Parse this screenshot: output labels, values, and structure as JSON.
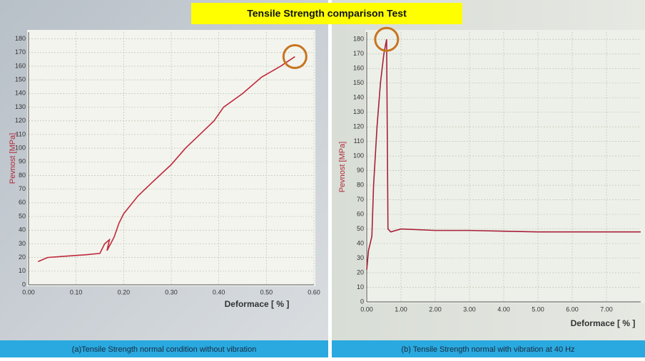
{
  "header": {
    "title": "Tensile Strength comparison Test"
  },
  "chart_data": [
    {
      "type": "line",
      "caption": "(a)Tensile Strength normal condition without vibration",
      "x_label": "Deformace [ % ]",
      "y_label": "Pevnost [MPa]",
      "color": "#c0283c",
      "grid": true,
      "x": [
        0.02,
        0.04,
        0.08,
        0.12,
        0.15,
        0.16,
        0.17,
        0.165,
        0.18,
        0.19,
        0.2,
        0.23,
        0.26,
        0.3,
        0.33,
        0.36,
        0.39,
        0.41,
        0.45,
        0.49,
        0.53,
        0.56
      ],
      "values": [
        17,
        20,
        21,
        22,
        23,
        30,
        33,
        25,
        35,
        45,
        52,
        65,
        75,
        88,
        100,
        110,
        120,
        130,
        140,
        152,
        160,
        167
      ],
      "xlim": [
        0,
        0.6
      ],
      "ylim": [
        0,
        185
      ],
      "xticks": [
        {
          "value": 0,
          "label": "0.00"
        },
        {
          "value": 0.1,
          "label": "0.10"
        },
        {
          "value": 0.2,
          "label": "0.20"
        },
        {
          "value": 0.3,
          "label": "0.30"
        },
        {
          "value": 0.4,
          "label": "0.40"
        },
        {
          "value": 0.5,
          "label": "0.50"
        },
        {
          "value": 0.6,
          "label": "0.60"
        }
      ],
      "yticks": [
        0,
        10,
        20,
        30,
        40,
        50,
        60,
        70,
        80,
        90,
        100,
        110,
        120,
        130,
        140,
        150,
        160,
        170,
        180
      ]
    },
    {
      "type": "line",
      "caption": "(b) Tensile Strength normal with vibration at 40 Hz",
      "x_label": "Deformace [ % ]",
      "y_label": "Pevnost [MPa]",
      "color": "#a8203a",
      "grid": true,
      "x": [
        0,
        0.05,
        0.15,
        0.2,
        0.3,
        0.4,
        0.5,
        0.58,
        0.62,
        0.7,
        1.0,
        2,
        3,
        4,
        5,
        6,
        7,
        8
      ],
      "values": [
        22,
        35,
        45,
        80,
        120,
        150,
        170,
        180,
        50,
        48,
        50,
        49,
        49,
        48.5,
        48,
        48,
        48,
        48
      ],
      "xlim": [
        0,
        8
      ],
      "ylim": [
        0,
        185
      ],
      "xticks": [
        {
          "value": 0,
          "label": "0.00"
        },
        {
          "value": 1,
          "label": "1.00"
        },
        {
          "value": 2,
          "label": "2.00"
        },
        {
          "value": 3,
          "label": "3.00"
        },
        {
          "value": 4,
          "label": "4.00"
        },
        {
          "value": 5,
          "label": "5.00"
        },
        {
          "value": 6,
          "label": "6.00"
        },
        {
          "value": 7,
          "label": "7.00"
        }
      ],
      "yticks": [
        0,
        10,
        20,
        30,
        40,
        50,
        60,
        70,
        80,
        90,
        100,
        110,
        120,
        130,
        140,
        150,
        160,
        170,
        180
      ]
    }
  ]
}
